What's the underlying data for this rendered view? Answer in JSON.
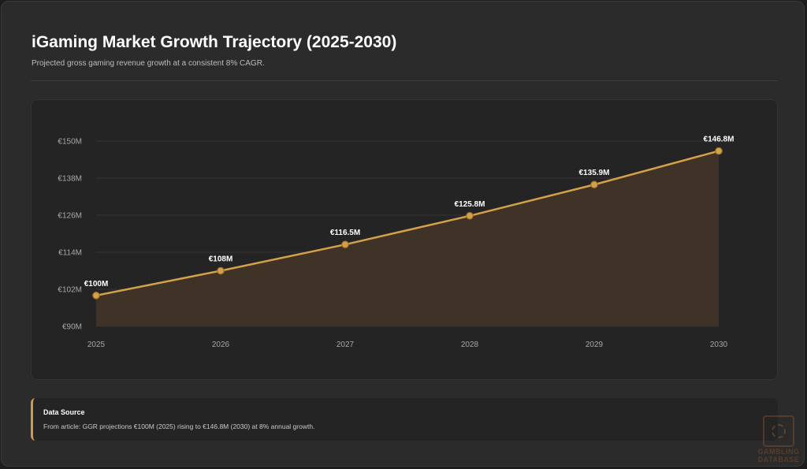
{
  "header": {
    "title": "iGaming Market Growth Trajectory (2025-2030)",
    "subtitle": "Projected gross gaming revenue growth at a consistent 8% CAGR."
  },
  "chart_data": {
    "type": "area",
    "categories": [
      "2025",
      "2026",
      "2027",
      "2028",
      "2029",
      "2030"
    ],
    "series": [
      {
        "values": [
          100,
          108,
          116.5,
          125.8,
          135.9,
          146.8
        ],
        "data_labels": [
          "€100M",
          "€108M",
          "€116.5M",
          "€125.8M",
          "€135.9M",
          "€146.8M"
        ]
      }
    ],
    "y_ticks": [
      90,
      102,
      114,
      126,
      138,
      150
    ],
    "y_tick_labels": [
      "€90M",
      "€102M",
      "€114M",
      "€126M",
      "€138M",
      "€150M"
    ],
    "ylim": [
      90,
      150
    ],
    "grid": true,
    "colors": {
      "line": "#d4a04a",
      "fill": "#3f3226",
      "point": "#d4a04a",
      "point_stroke": "#a0742c",
      "grid": "#353535"
    }
  },
  "source": {
    "title": "Data Source",
    "text": "From article: GGR projections €100M (2025) rising to €146.8M (2030) at 8% annual growth."
  },
  "watermark": {
    "line1": "GAMBLING",
    "line2": "DATABASE"
  }
}
